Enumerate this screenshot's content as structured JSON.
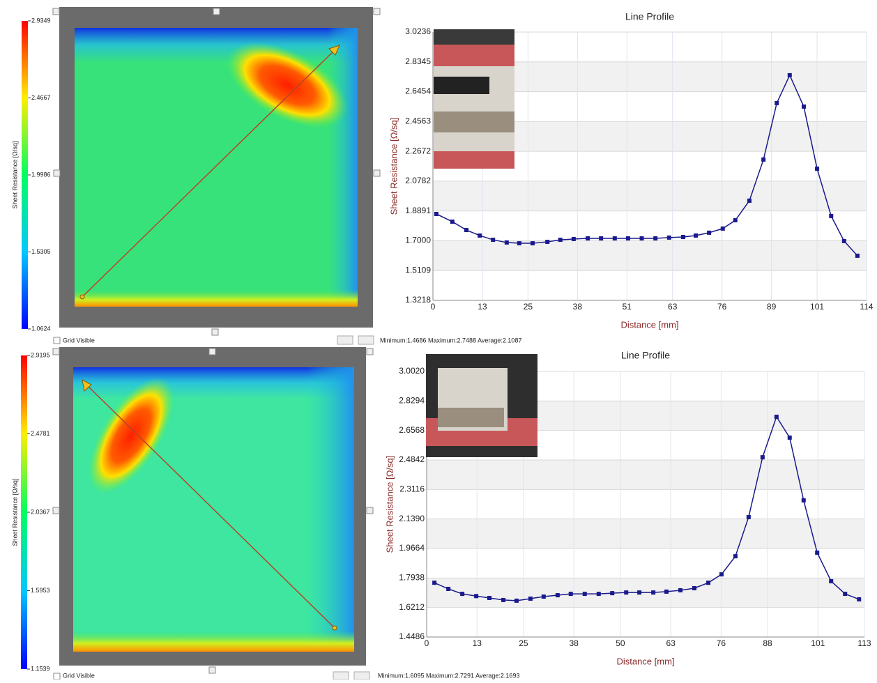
{
  "chart_data": [
    {
      "type": "line",
      "title": "Line Profile",
      "x_label": "Distance [mm]",
      "y_label": "Sheet Resistance [Ω/sq]",
      "color": "#1a1a8c",
      "xlim": [
        0,
        114
      ],
      "xticks": [
        0,
        13,
        25,
        38,
        51,
        63,
        76,
        89,
        101,
        114
      ],
      "ylim": [
        1.3218,
        3.0236
      ],
      "yticks": [
        1.3218,
        1.5109,
        {
          "value": 1.7,
          "label": "1.7000"
        },
        1.8891,
        2.0782,
        2.2672,
        2.4563,
        2.6454,
        2.8345,
        3.0236
      ],
      "x": [
        0.9,
        5.1,
        8.8,
        12.3,
        15.8,
        19.4,
        22.7,
        26.2,
        30.1,
        33.5,
        37.0,
        40.7,
        44.2,
        47.8,
        51.3,
        54.9,
        58.5,
        62.1,
        65.8,
        69.1,
        72.6,
        76.2,
        79.5,
        83.2,
        86.9,
        90.4,
        93.8,
        97.5,
        101.0,
        104.7,
        108.1,
        111.6
      ],
      "values": [
        1.87,
        1.821,
        1.768,
        1.733,
        1.706,
        1.689,
        1.684,
        1.684,
        1.693,
        1.706,
        1.711,
        1.715,
        1.715,
        1.715,
        1.715,
        1.715,
        1.715,
        1.72,
        1.724,
        1.733,
        1.751,
        1.777,
        1.83,
        1.954,
        2.215,
        2.573,
        2.75,
        2.551,
        2.157,
        1.857,
        1.698,
        1.605
      ]
    },
    {
      "type": "line",
      "title": "Line Profile",
      "x_label": "Distance [mm]",
      "y_label": "Sheet Resistance [Ω/sq]",
      "color": "#1a1a8c",
      "xlim": [
        0,
        113
      ],
      "xticks": [
        0,
        13,
        25,
        38,
        50,
        63,
        76,
        88,
        101,
        113
      ],
      "ylim": [
        1.4486,
        3.002
      ],
      "yticks": [
        1.4486,
        1.6212,
        1.7938,
        1.9664,
        {
          "value": 2.139,
          "label": "2.1390"
        },
        2.3116,
        2.4842,
        2.6568,
        2.8294,
        {
          "value": 3.002,
          "label": "3.0020"
        }
      ],
      "x": [
        2.0,
        5.6,
        9.2,
        12.8,
        16.2,
        19.8,
        23.2,
        26.8,
        30.2,
        33.8,
        37.2,
        40.8,
        44.4,
        47.9,
        51.5,
        54.9,
        58.5,
        61.9,
        65.5,
        69.1,
        72.7,
        76.1,
        79.7,
        83.1,
        86.7,
        90.3,
        93.7,
        97.3,
        100.8,
        104.4,
        108.0,
        111.6
      ],
      "values": [
        1.766,
        1.73,
        1.701,
        1.688,
        1.677,
        1.665,
        1.661,
        1.673,
        1.685,
        1.693,
        1.701,
        1.701,
        1.701,
        1.705,
        1.709,
        1.709,
        1.709,
        1.714,
        1.722,
        1.734,
        1.766,
        1.815,
        1.921,
        2.15,
        2.5,
        2.737,
        2.615,
        2.248,
        1.942,
        1.775,
        1.701,
        1.669
      ]
    }
  ],
  "panels": [
    {
      "colorbar": {
        "title": "Sheet Resistance [Ω/sq]",
        "ticks": [
          "2.9349",
          "2.4667",
          "1.9986",
          "1.5305",
          "1.0624"
        ]
      },
      "grid_label": "Grid Visible",
      "stats": "Minimum:1.4686  Maximum:2.7488  Average:2.1087"
    },
    {
      "colorbar": {
        "title": "Sheet Resistance [Ω/sq]",
        "ticks": [
          "2.9195",
          "2.4781",
          "2.0367",
          "1.5953",
          "1.1539"
        ]
      },
      "grid_label": "Grid Visible",
      "stats": "Minimum:1.6095  Maximum:2.7291  Average:2.1693"
    }
  ]
}
